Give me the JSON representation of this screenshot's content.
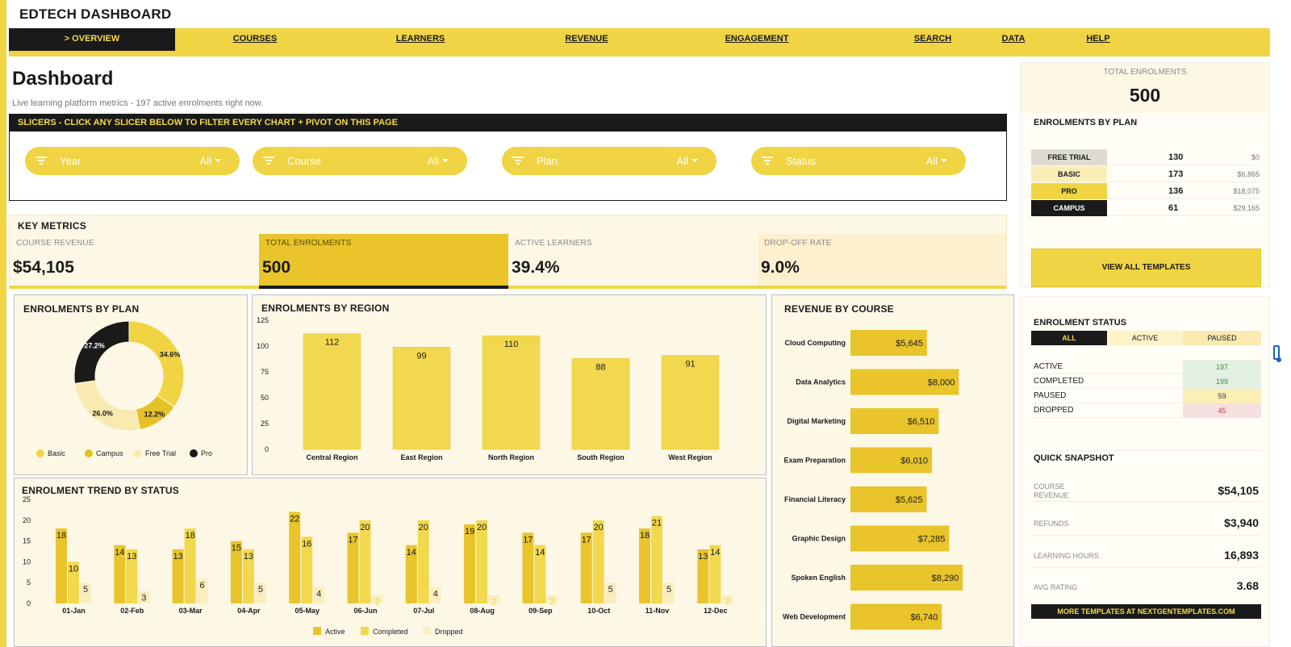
{
  "app_title": "EDTECH DASHBOARD",
  "nav": [
    {
      "label": "> OVERVIEW",
      "active": true
    },
    {
      "label": "COURSES"
    },
    {
      "label": "LEARNERS"
    },
    {
      "label": "REVENUE"
    },
    {
      "label": "ENGAGEMENT"
    },
    {
      "label": "SEARCH"
    },
    {
      "label": "DATA"
    },
    {
      "label": "HELP"
    }
  ],
  "page": {
    "title": "Dashboard",
    "subtitle": "Live learning platform metrics  -  197 active enrolments right now."
  },
  "slicers": {
    "header": "SLICERS  -  CLICK ANY SLICER BELOW TO FILTER EVERY CHART + PIVOT ON THIS PAGE",
    "items": [
      {
        "label": "Year",
        "value": "All"
      },
      {
        "label": "Course",
        "value": "All"
      },
      {
        "label": "Plan",
        "value": "All"
      },
      {
        "label": "Status",
        "value": "All"
      }
    ]
  },
  "key_metrics": {
    "title": "KEY METRICS",
    "items": [
      {
        "label": "COURSE REVENUE",
        "value": "$54,105"
      },
      {
        "label": "TOTAL ENROLMENTS",
        "value": "500"
      },
      {
        "label": "ACTIVE LEARNERS",
        "value": "39.4%"
      },
      {
        "label": "DROP-OFF RATE",
        "value": "9.0%"
      }
    ]
  },
  "colors": {
    "accent": "#f0d444",
    "dark": "#1a1a1a",
    "basic": "#f0d444",
    "campus": "#e6c027",
    "free_trial": "#f9ebb0",
    "pro": "#1a1a1a",
    "active": "#e9c42a",
    "completed": "#f2d84e",
    "dropped": "#faeec0"
  },
  "panels": {
    "plan": "ENROLMENTS BY PLAN",
    "region": "ENROLMENTS BY REGION",
    "course": "REVENUE BY COURSE",
    "trend": "ENROLMENT TREND BY STATUS"
  },
  "chart_data": [
    {
      "type": "pie",
      "title": "ENROLMENTS BY PLAN",
      "categories": [
        "Basic",
        "Campus",
        "Free Trial",
        "Pro"
      ],
      "values": [
        34.6,
        12.2,
        26.0,
        27.2
      ],
      "labels": [
        "34.6%",
        "12.2%",
        "26.0%",
        "27.2%"
      ],
      "legend": "bottom"
    },
    {
      "type": "bar",
      "title": "ENROLMENTS BY REGION",
      "categories": [
        "Central Region",
        "East Region",
        "North Region",
        "South Region",
        "West Region"
      ],
      "values": [
        112,
        99,
        110,
        88,
        91
      ],
      "ylim": [
        0,
        125
      ],
      "yticks": [
        "0",
        "25",
        "50",
        "75",
        "100",
        "125"
      ]
    },
    {
      "type": "bar",
      "orientation": "horizontal",
      "title": "REVENUE BY COURSE",
      "categories": [
        "Cloud Computing",
        "Data Analytics",
        "Digital Marketing",
        "Exam Preparation",
        "Financial Literacy",
        "Graphic Design",
        "Spoken English",
        "Web Development"
      ],
      "values": [
        5645,
        8000,
        6510,
        6010,
        5625,
        7285,
        8290,
        6740
      ],
      "labels": [
        "$5,645",
        "$8,000",
        "$6,510",
        "$6,010",
        "$5,625",
        "$7,285",
        "$8,290",
        "$6,740"
      ]
    },
    {
      "type": "bar",
      "title": "ENROLMENT TREND BY STATUS",
      "categories": [
        "01-Jan",
        "02-Feb",
        "03-Mar",
        "04-Apr",
        "05-May",
        "06-Jun",
        "07-Jul",
        "08-Aug",
        "09-Sep",
        "10-Oct",
        "11-Nov",
        "12-Dec"
      ],
      "series": [
        {
          "name": "Active",
          "values": [
            18,
            14,
            13,
            15,
            22,
            17,
            14,
            19,
            17,
            17,
            18,
            13
          ]
        },
        {
          "name": "Completed",
          "values": [
            10,
            13,
            18,
            13,
            16,
            20,
            20,
            20,
            14,
            20,
            21,
            14
          ]
        },
        {
          "name": "Dropped",
          "values": [
            5,
            3,
            6,
            5,
            4,
            2,
            4,
            2,
            2,
            5,
            5,
            2
          ]
        }
      ],
      "ylim": [
        0,
        25
      ],
      "yticks": [
        "0",
        "5",
        "10",
        "15",
        "20",
        "25"
      ],
      "legend": "bottom"
    }
  ],
  "side": {
    "total_label": "TOTAL ENROLMENTS",
    "total_value": "500",
    "plan_title": "ENROLMENTS BY PLAN",
    "plans": [
      {
        "name": "FREE TRIAL",
        "count": "130",
        "revenue": "$0"
      },
      {
        "name": "BASIC",
        "count": "173",
        "revenue": "$6,865"
      },
      {
        "name": "PRO",
        "count": "136",
        "revenue": "$18,075"
      },
      {
        "name": "CAMPUS",
        "count": "61",
        "revenue": "$29,165"
      }
    ],
    "templates_button": "VIEW ALL TEMPLATES",
    "status_title": "ENROLMENT STATUS",
    "status_tabs": [
      "ALL",
      "ACTIVE",
      "PAUSED"
    ],
    "statuses": [
      {
        "name": "ACTIVE",
        "count": "197"
      },
      {
        "name": "COMPLETED",
        "count": "199"
      },
      {
        "name": "PAUSED",
        "count": "59"
      },
      {
        "name": "DROPPED",
        "count": "45"
      }
    ],
    "snapshot_title": "QUICK SNAPSHOT",
    "snapshot": [
      {
        "label": "COURSE REVENUE",
        "value": "$54,105"
      },
      {
        "label": "REFUNDS",
        "value": "$3,940"
      },
      {
        "label": "LEARNING HOURS",
        "value": "16,893"
      },
      {
        "label": "AVG RATING",
        "value": "3.68"
      }
    ],
    "footer_link": "MORE TEMPLATES AT NEXTGENTEMPLATES.COM"
  }
}
